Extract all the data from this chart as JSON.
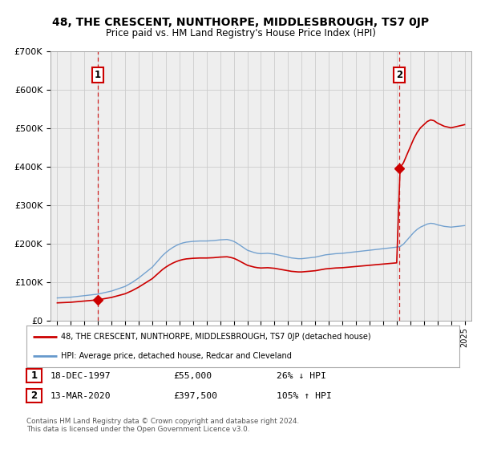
{
  "title": "48, THE CRESCENT, NUNTHORPE, MIDDLESBROUGH, TS7 0JP",
  "subtitle": "Price paid vs. HM Land Registry's House Price Index (HPI)",
  "sale1_date": 1997.96,
  "sale1_price": 55000,
  "sale2_date": 2020.2,
  "sale2_price": 397500,
  "legend_line1": "48, THE CRESCENT, NUNTHORPE, MIDDLESBROUGH, TS7 0JP (detached house)",
  "legend_line2": "HPI: Average price, detached house, Redcar and Cleveland",
  "table_row1_num": "1",
  "table_row1_date": "18-DEC-1997",
  "table_row1_price": "£55,000",
  "table_row1_pct": "26% ↓ HPI",
  "table_row2_num": "2",
  "table_row2_date": "13-MAR-2020",
  "table_row2_price": "£397,500",
  "table_row2_pct": "105% ↑ HPI",
  "footer": "Contains HM Land Registry data © Crown copyright and database right 2024.\nThis data is licensed under the Open Government Licence v3.0.",
  "ylim": [
    0,
    700000
  ],
  "xlim": [
    1994.5,
    2025.5
  ],
  "red_color": "#cc0000",
  "blue_color": "#6699cc",
  "grid_color": "#cccccc",
  "bg_color": "#ffffff",
  "plot_bg": "#eeeeee"
}
